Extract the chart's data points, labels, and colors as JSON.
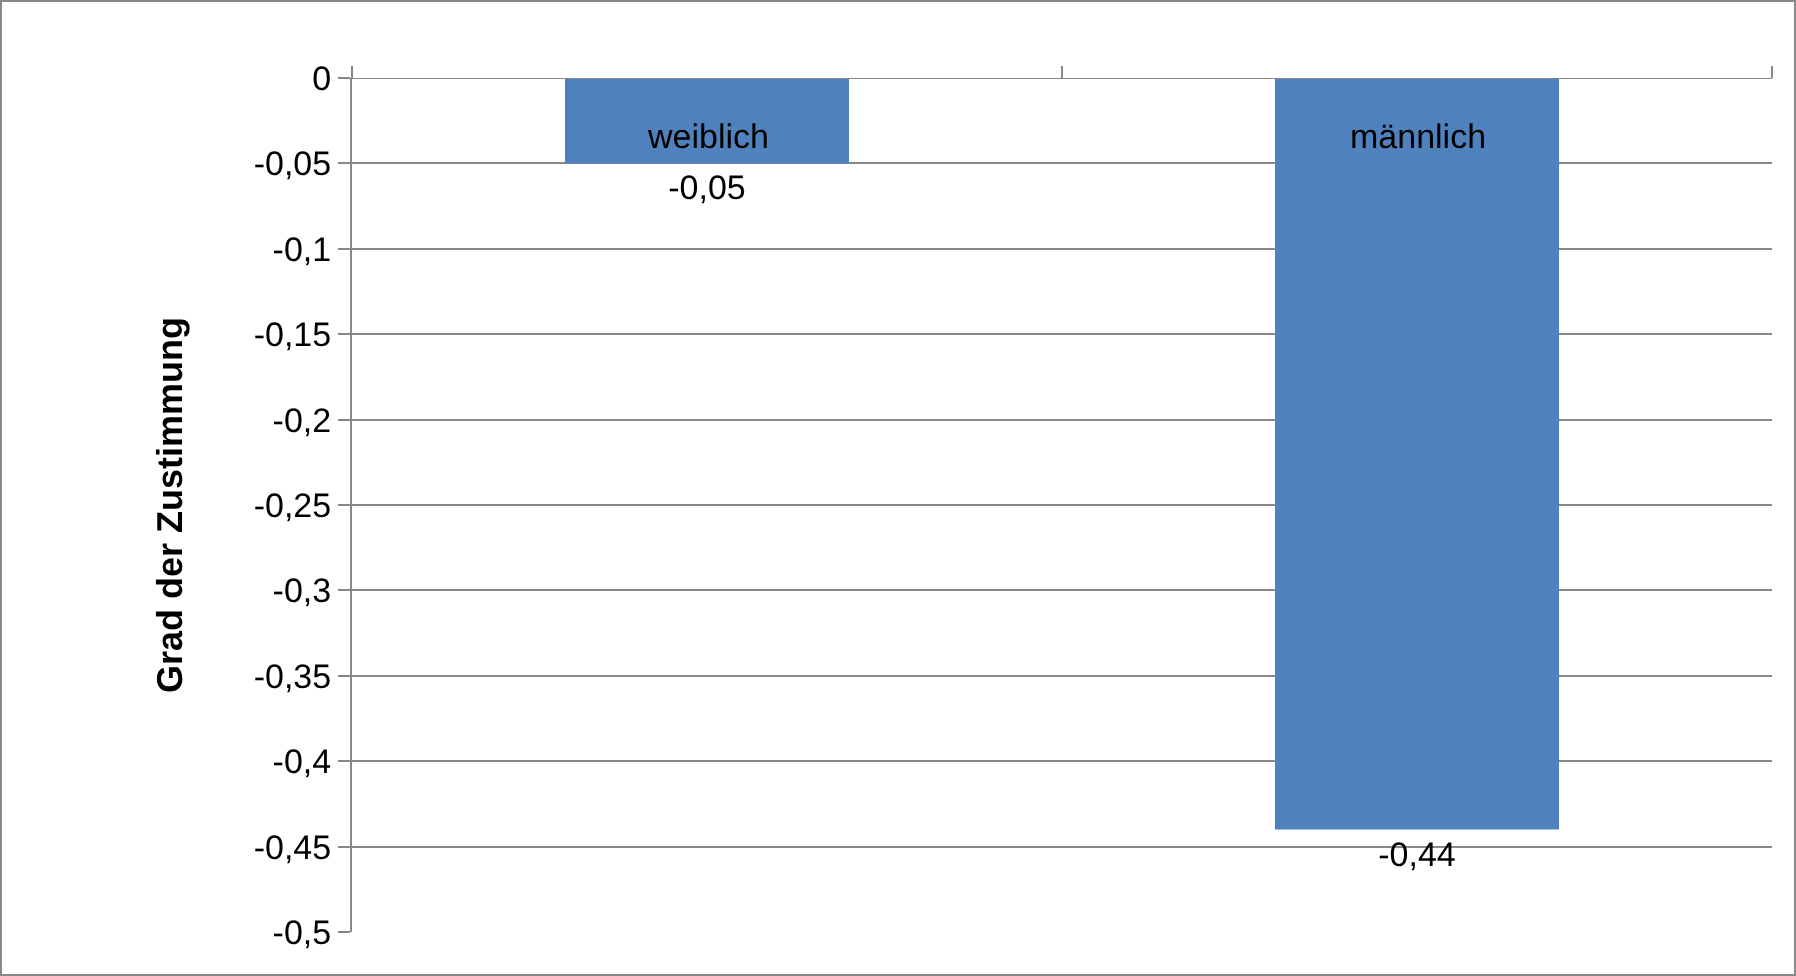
{
  "chart_data": {
    "type": "bar",
    "ylabel": "Grad der Zustimmung",
    "categories": [
      "weiblich",
      "männlich"
    ],
    "values": [
      -0.05,
      -0.44
    ],
    "value_labels": [
      "-0,05",
      "-0,44"
    ],
    "color": "#4f81bd",
    "ylim": [
      -0.5,
      0
    ],
    "yticks": [
      0,
      {
        "value": -0.05,
        "label": "-0,05"
      },
      {
        "value": -0.1,
        "label": "-0,1"
      },
      {
        "value": -0.15,
        "label": "-0,15"
      },
      {
        "value": -0.2,
        "label": "-0,2"
      },
      {
        "value": -0.25,
        "label": "-0,25"
      },
      {
        "value": -0.3,
        "label": "-0,3"
      },
      {
        "value": -0.35,
        "label": "-0,35"
      },
      {
        "value": -0.4,
        "label": "-0,4"
      },
      {
        "value": -0.45,
        "label": "-0,45"
      },
      {
        "value": -0.5,
        "label": "-0,5"
      }
    ],
    "grid": "y"
  }
}
